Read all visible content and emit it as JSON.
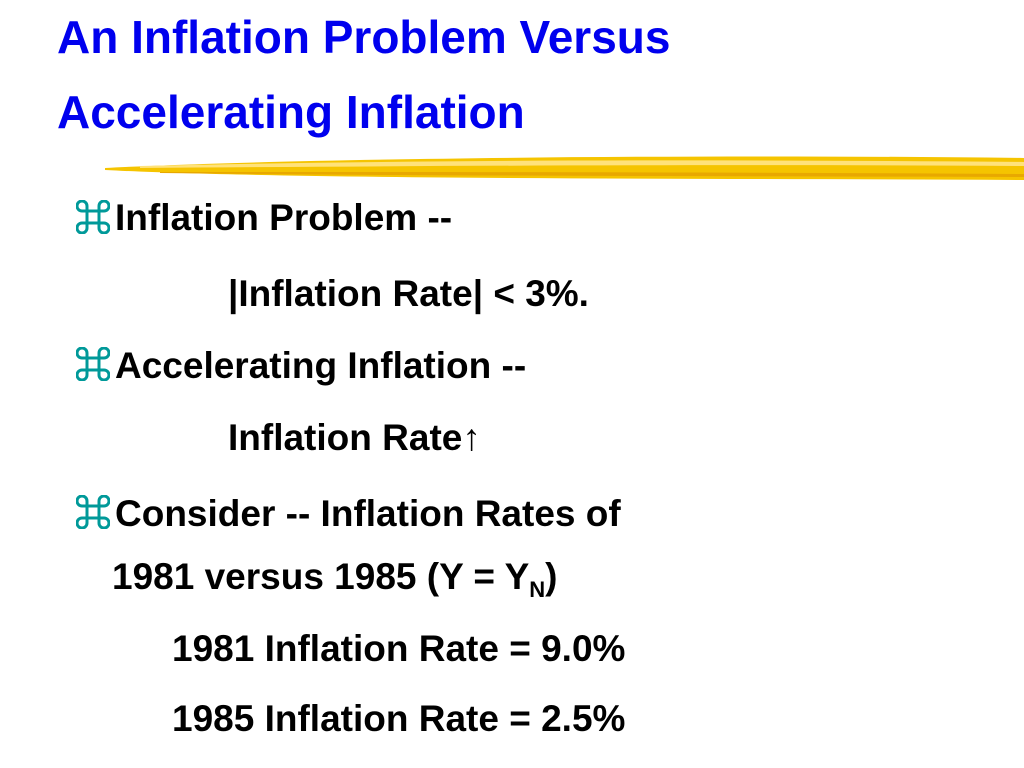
{
  "title": {
    "line1": "An Inflation Problem Versus",
    "line2": "Accelerating Inflation"
  },
  "items": [
    {
      "heading": "Inflation Problem --",
      "detail": [
        "|Inflation Rate| < 3%."
      ]
    },
    {
      "heading": "Accelerating Inflation --",
      "detail": [
        "Inflation Rate↑"
      ]
    },
    {
      "heading": "Consider -- Inflation Rates of",
      "continuation": {
        "text": "1981 versus 1985 (Y = Y",
        "subscript": "N",
        "after": ")"
      },
      "detail": [
        "1981 Inflation Rate = 9.0%",
        "1985 Inflation Rate = 2.5%"
      ]
    }
  ]
}
